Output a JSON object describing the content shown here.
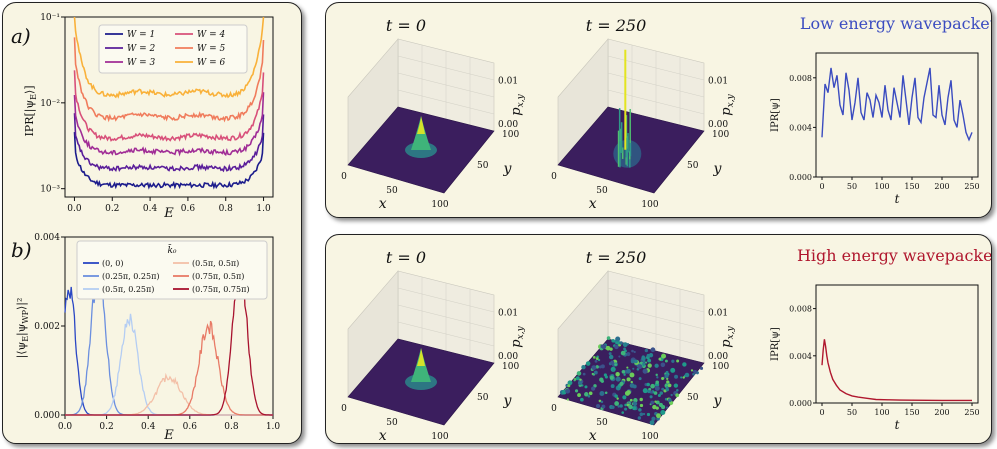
{
  "panel_a": {
    "label": "a)",
    "chart_data": {
      "type": "line",
      "xlabel": "E",
      "ylabel": "IPR[|ψ_E⟩]",
      "xlim": [
        -0.05,
        1.05
      ],
      "ylim": [
        0.0008,
        0.1
      ],
      "yscale": "log",
      "xticks": [
        "0.0",
        "0.2",
        "0.4",
        "0.6",
        "0.8",
        "1.0"
      ],
      "xtick_values": [
        0,
        0.2,
        0.4,
        0.6,
        0.8,
        1.0
      ],
      "yticks": [
        "10⁻³",
        "10⁻²",
        "10⁻¹"
      ],
      "legend_position": "top",
      "series": [
        {
          "name": "W = 1",
          "color": "#1c1c8c",
          "edge": 0.0028,
          "mid": 0.0011,
          "bump": 0.0
        },
        {
          "name": "W = 2",
          "color": "#5a1e9a",
          "edge": 0.0045,
          "mid": 0.0017,
          "bump": 0.05
        },
        {
          "name": "W = 3",
          "color": "#a02d96",
          "edge": 0.008,
          "mid": 0.0026,
          "bump": 0.08
        },
        {
          "name": "W = 4",
          "color": "#d8507a",
          "edge": 0.015,
          "mid": 0.0038,
          "bump": 0.1
        },
        {
          "name": "W = 5",
          "color": "#f07c5c",
          "edge": 0.035,
          "mid": 0.0065,
          "bump": 0.12
        },
        {
          "name": "W = 6",
          "color": "#f9b13a",
          "edge": 0.09,
          "mid": 0.012,
          "bump": 0.14
        }
      ]
    }
  },
  "panel_b": {
    "label": "b)",
    "chart_data": {
      "type": "line",
      "xlabel": "E",
      "ylabel": "|⟨ψ_E|ψ_WP⟩|²",
      "xlim": [
        0,
        1
      ],
      "ylim": [
        0,
        0.004
      ],
      "xticks": [
        "0.0",
        "0.2",
        "0.4",
        "0.6",
        "0.8",
        "1.0"
      ],
      "xtick_values": [
        0,
        0.2,
        0.4,
        0.6,
        0.8,
        1.0
      ],
      "yticks": [
        "0.000",
        "0.002",
        "0.004"
      ],
      "ytick_values": [
        0,
        0.002,
        0.004
      ],
      "legend_title": "k̄₀",
      "legend_position": "top-right",
      "series": [
        {
          "name": "(0, 0)",
          "color": "#2a47c4",
          "center": 0.02,
          "peak": 0.0029,
          "width": 0.03
        },
        {
          "name": "(0.25π, 0.25π)",
          "color": "#6b8fdf",
          "center": 0.16,
          "peak": 0.0032,
          "width": 0.035
        },
        {
          "name": "(0.5π, 0.25π)",
          "color": "#b4cdf3",
          "center": 0.31,
          "peak": 0.0022,
          "width": 0.04
        },
        {
          "name": "(0.5π, 0.5π)",
          "color": "#f3c0a8",
          "center": 0.5,
          "peak": 0.00085,
          "width": 0.06
        },
        {
          "name": "(0.75π, 0.5π)",
          "color": "#e87a66",
          "center": 0.69,
          "peak": 0.002,
          "width": 0.045
        },
        {
          "name": "(0.75π, 0.75π)",
          "color": "#a8122e",
          "center": 0.84,
          "peak": 0.0034,
          "width": 0.035
        }
      ]
    }
  },
  "top_panel": {
    "title": "Low energy wavepacket",
    "title_color": "#3b4cc0",
    "snap1_label": "t = 0",
    "snap2_label": "t = 250",
    "axis_x": "x",
    "axis_y": "y",
    "axis_p": "p",
    "axis_p_sub": "x,y",
    "ticks_x": [
      "0",
      "50",
      "100"
    ],
    "ticks_y": [
      "50",
      "100"
    ],
    "ticks_p": [
      "0.00",
      "0.01"
    ],
    "chart_data": {
      "type": "line",
      "xlabel": "t",
      "ylabel": "IPR[ψ]",
      "xlim": [
        -10,
        260
      ],
      "ylim": [
        0,
        0.01
      ],
      "xticks": [
        "0",
        "50",
        "100",
        "150",
        "200",
        "250"
      ],
      "xtick_values": [
        0,
        50,
        100,
        150,
        200,
        250
      ],
      "yticks": [
        "0.000",
        "0.004",
        "0.008"
      ],
      "ytick_values": [
        0,
        0.004,
        0.008
      ],
      "color": "#3b4cc0",
      "t": [
        0,
        5,
        10,
        15,
        20,
        25,
        30,
        35,
        40,
        45,
        50,
        55,
        60,
        65,
        70,
        75,
        80,
        85,
        90,
        95,
        100,
        105,
        110,
        115,
        120,
        125,
        130,
        135,
        140,
        145,
        150,
        155,
        160,
        165,
        170,
        175,
        180,
        185,
        190,
        195,
        200,
        205,
        210,
        215,
        220,
        225,
        230,
        235,
        240,
        245,
        250
      ],
      "values": [
        0.0032,
        0.0075,
        0.0068,
        0.0088,
        0.0072,
        0.0082,
        0.0058,
        0.005,
        0.0084,
        0.007,
        0.0046,
        0.006,
        0.008,
        0.0052,
        0.0046,
        0.0068,
        0.0062,
        0.0048,
        0.0066,
        0.006,
        0.0048,
        0.0074,
        0.0054,
        0.0046,
        0.0072,
        0.006,
        0.0048,
        0.0082,
        0.0062,
        0.0042,
        0.0064,
        0.008,
        0.0048,
        0.0044,
        0.0064,
        0.0076,
        0.0088,
        0.005,
        0.0048,
        0.0074,
        0.005,
        0.0042,
        0.0064,
        0.0078,
        0.0046,
        0.004,
        0.0062,
        0.005,
        0.0036,
        0.003,
        0.0036
      ]
    }
  },
  "bottom_panel": {
    "title": "High energy wavepacket",
    "title_color": "#b0172e",
    "snap1_label": "t = 0",
    "snap2_label": "t = 250",
    "axis_x": "x",
    "axis_y": "y",
    "axis_p": "p",
    "axis_p_sub": "x,y",
    "ticks_x": [
      "0",
      "50",
      "100"
    ],
    "ticks_y": [
      "50",
      "100"
    ],
    "ticks_p": [
      "0.00",
      "0.01"
    ],
    "chart_data": {
      "type": "line",
      "xlabel": "t",
      "ylabel": "IPR[ψ]",
      "xlim": [
        -10,
        260
      ],
      "ylim": [
        0,
        0.01
      ],
      "xticks": [
        "0",
        "50",
        "100",
        "150",
        "200",
        "250"
      ],
      "xtick_values": [
        0,
        50,
        100,
        150,
        200,
        250
      ],
      "yticks": [
        "0.000",
        "0.004",
        "0.008"
      ],
      "ytick_values": [
        0,
        0.004,
        0.008
      ],
      "color": "#b0172e",
      "t": [
        0,
        2,
        4,
        6,
        8,
        10,
        14,
        18,
        24,
        30,
        40,
        50,
        60,
        75,
        90,
        110,
        130,
        150,
        175,
        200,
        225,
        250
      ],
      "values": [
        0.0032,
        0.0045,
        0.0054,
        0.0048,
        0.004,
        0.0034,
        0.0026,
        0.002,
        0.0015,
        0.0011,
        0.0008,
        0.0006,
        0.0005,
        0.0004,
        0.0003,
        0.00027,
        0.00025,
        0.00024,
        0.00023,
        0.00022,
        0.00022,
        0.00022
      ]
    }
  }
}
